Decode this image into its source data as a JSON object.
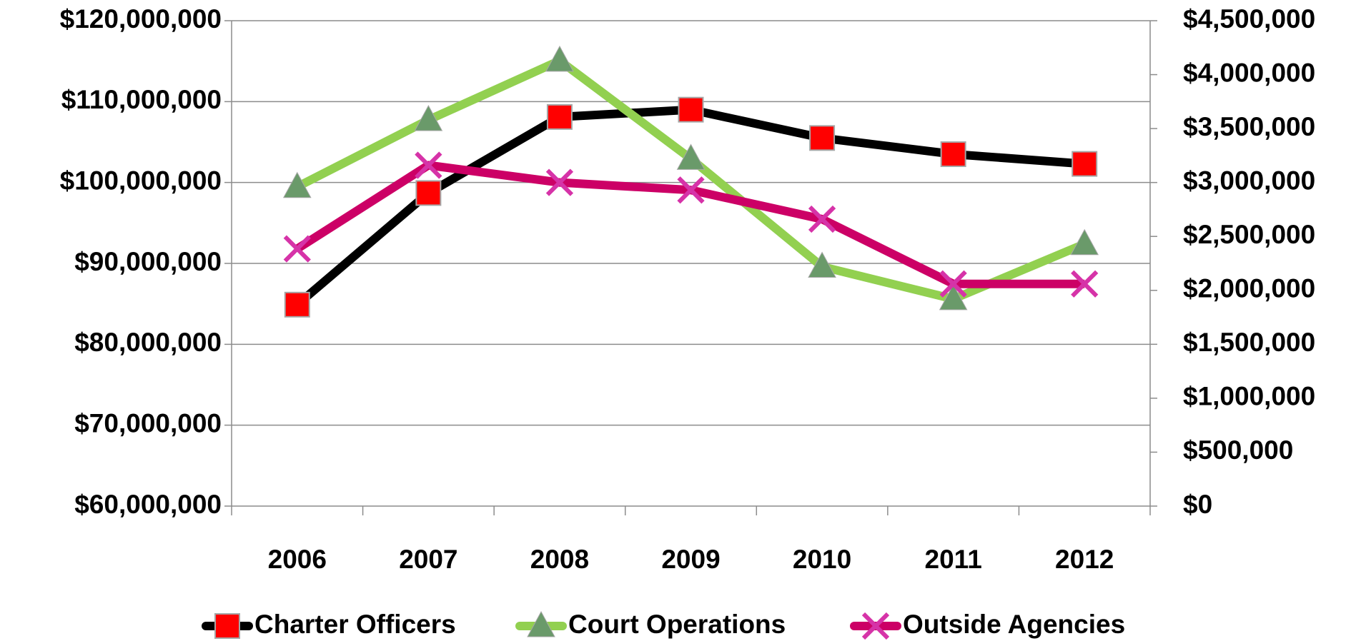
{
  "chart_data": {
    "type": "line",
    "categories": [
      "2006",
      "2007",
      "2008",
      "2009",
      "2010",
      "2011",
      "2012"
    ],
    "series": [
      {
        "name": "Charter Officers",
        "color": "#000000",
        "marker": "square",
        "marker_color": "#ff0000",
        "axis": "y",
        "values": [
          84900000,
          98700000,
          108100000,
          109000000,
          105500000,
          103500000,
          102300000
        ]
      },
      {
        "name": "Court Operations",
        "color": "#92d050",
        "marker": "triangle",
        "marker_color": "#6a9a6a",
        "axis": "y2",
        "values": [
          2960000,
          3580000,
          4130000,
          3220000,
          2220000,
          1920000,
          2430000
        ]
      },
      {
        "name": "Outside Agencies",
        "color": "#cc0066",
        "marker": "x",
        "marker_color": "#d633a8",
        "axis": "y2",
        "values": [
          2385000,
          3160000,
          3000000,
          2930000,
          2660000,
          2060000,
          2060000
        ]
      }
    ],
    "ylim": [
      60000000,
      120000000
    ],
    "yticks": [
      {
        "value": 60000000,
        "label": "$60,000,000"
      },
      {
        "value": 70000000,
        "label": "$70,000,000"
      },
      {
        "value": 80000000,
        "label": "$80,000,000"
      },
      {
        "value": 90000000,
        "label": "$90,000,000"
      },
      {
        "value": 100000000,
        "label": "$100,000,000"
      },
      {
        "value": 110000000,
        "label": "$110,000,000"
      },
      {
        "value": 120000000,
        "label": "$120,000,000"
      }
    ],
    "y2lim": [
      0,
      4500000
    ],
    "y2ticks": [
      {
        "value": 0,
        "label": "$0"
      },
      {
        "value": 500000,
        "label": "$500,000"
      },
      {
        "value": 1000000,
        "label": "$1,000,000"
      },
      {
        "value": 1500000,
        "label": "$1,500,000"
      },
      {
        "value": 2000000,
        "label": "$2,000,000"
      },
      {
        "value": 2500000,
        "label": "$2,500,000"
      },
      {
        "value": 3000000,
        "label": "$3,000,000"
      },
      {
        "value": 3500000,
        "label": "$3,500,000"
      },
      {
        "value": 4000000,
        "label": "$4,000,000"
      },
      {
        "value": 4500000,
        "label": "$4,500,000"
      }
    ],
    "grid": true,
    "legend": "bottom"
  }
}
